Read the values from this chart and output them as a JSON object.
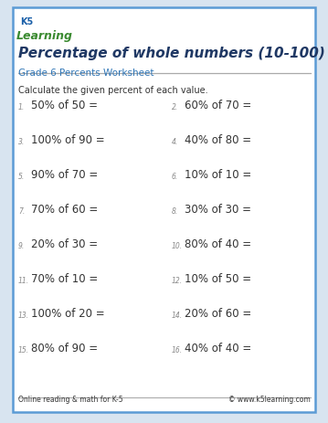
{
  "title": "Percentage of whole numbers (10-100)",
  "subtitle": "Grade 6 Percents Worksheet",
  "instruction": "Calculate the given percent of each value.",
  "problems": [
    [
      "50% of 50 =",
      "60% of 70 ="
    ],
    [
      "100% of 90 =",
      "40% of 80 ="
    ],
    [
      "90% of 70 =",
      "10% of 10 ="
    ],
    [
      "70% of 60 =",
      "30% of 30 ="
    ],
    [
      "20% of 30 =",
      "80% of 40 ="
    ],
    [
      "70% of 10 =",
      "10% of 50 ="
    ],
    [
      "100% of 20 =",
      "20% of 60 ="
    ],
    [
      "80% of 90 =",
      "40% of 40 ="
    ]
  ],
  "footer_left": "Online reading & math for K-5",
  "footer_right": "© www.k5learning.com",
  "border_color": "#5b9bd5",
  "title_color": "#1f3864",
  "subtitle_color": "#2e75b6",
  "body_color": "#333333",
  "number_color": "#888888",
  "background_color": "#ffffff",
  "page_bg": "#d8e4f0",
  "logo_k5_color": "#2e75b6",
  "logo_learning_color": "#4a9e3f"
}
